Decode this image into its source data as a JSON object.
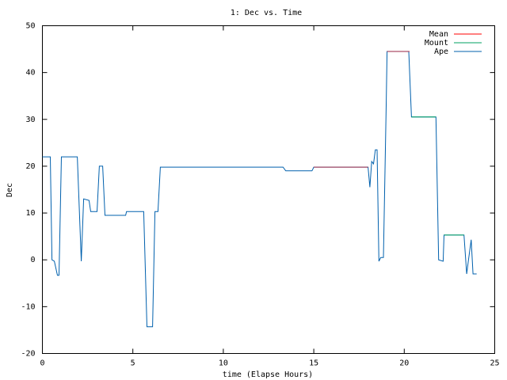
{
  "chart_data": {
    "type": "line",
    "title": "1: Dec vs. Time",
    "x_label": "time (Elapse Hours)",
    "y_label": "Dec",
    "xlim": [
      0,
      25
    ],
    "xticks": [
      0,
      5,
      10,
      15,
      20,
      25
    ],
    "ylim": [
      -20,
      50
    ],
    "yticks": [
      -20,
      -10,
      0,
      10,
      20,
      30,
      40,
      50
    ],
    "legend": "top-right",
    "series": [
      {
        "name": "Mean",
        "color": "#ff0000",
        "x": [
          15,
          18,
          null,
          19.05,
          20.3
        ],
        "values": [
          19.8,
          19.8,
          null,
          44.5,
          44.5
        ]
      },
      {
        "name": "Mount",
        "color": "#00a060",
        "x": [
          20.4,
          21.75,
          null,
          22.2,
          23.3
        ],
        "values": [
          30.5,
          30.5,
          null,
          5.3,
          5.3
        ]
      },
      {
        "name": "Ape",
        "color": "#0060ad",
        "x": [
          0,
          0.44,
          0.53,
          0.66,
          0.83,
          0.92,
          1.05,
          1.93,
          2.15,
          2.28,
          2.58,
          2.67,
          3.02,
          3.15,
          3.33,
          3.46,
          4.6,
          4.65,
          5.6,
          5.78,
          6.09,
          6.22,
          6.39,
          6.52,
          13.3,
          13.45,
          14.9,
          15,
          18,
          18.1,
          18.2,
          18.3,
          18.4,
          18.5,
          18.6,
          18.7,
          18.85,
          19.0,
          19.05,
          20.25,
          20.4,
          21.75,
          21.9,
          22.15,
          22.2,
          23.3,
          23.45,
          23.55,
          23.7,
          23.8,
          24.0
        ],
        "values": [
          22,
          22,
          0,
          -0.3,
          -3.3,
          -3.3,
          22,
          22,
          -0.3,
          13,
          12.7,
          10.3,
          10.3,
          20,
          20,
          9.5,
          9.5,
          10.3,
          10.3,
          -14.3,
          -14.3,
          10.3,
          10.3,
          19.8,
          19.8,
          19,
          19,
          19.8,
          19.8,
          15.5,
          21,
          20.5,
          23.5,
          23.5,
          -0.3,
          0.5,
          0.5,
          33,
          44.5,
          44.5,
          30.5,
          30.5,
          0,
          -0.3,
          5.3,
          5.3,
          -3,
          0,
          4.3,
          -3,
          -3
        ]
      }
    ]
  }
}
